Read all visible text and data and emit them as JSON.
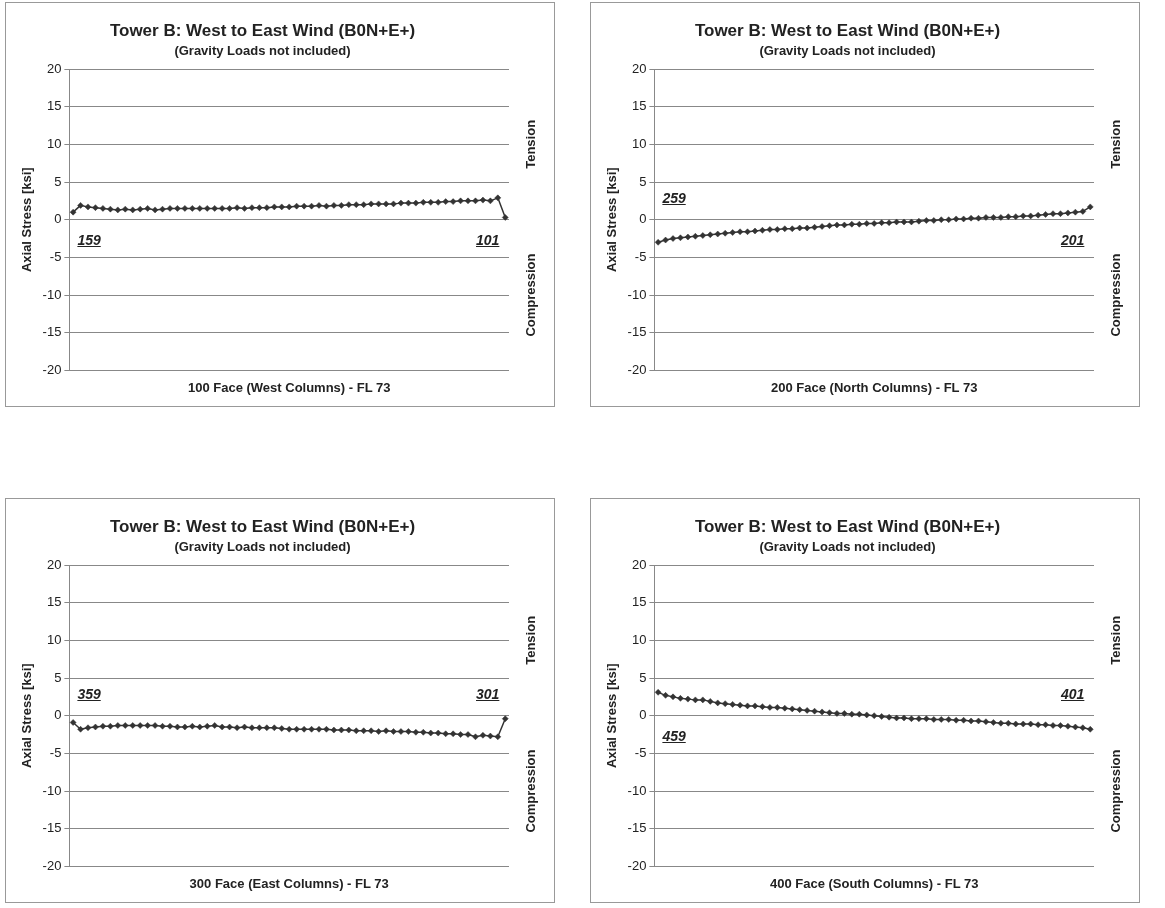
{
  "chart_data": [
    {
      "type": "line",
      "title": "Tower B: West to East Wind (B0N+E+)",
      "subtitle": "(Gravity Loads not included)",
      "xlabel": "100 Face (West Columns) - FL 73",
      "ylabel": "Axial Stress [ksi]",
      "categories": [
        null,
        null,
        null,
        null,
        null,
        null,
        null,
        null,
        null,
        null,
        null,
        null,
        null,
        null,
        null,
        null,
        null,
        null,
        null,
        null,
        null,
        null,
        null,
        null,
        null,
        null,
        null,
        null,
        null,
        null,
        null,
        null,
        null,
        null,
        null,
        null,
        null,
        null,
        null,
        null,
        null,
        null,
        null,
        null,
        null,
        null,
        null,
        null,
        null,
        null,
        null,
        null,
        null,
        null,
        null,
        null,
        null,
        null,
        null
      ],
      "series": [
        {
          "color": "#333333",
          "values": [
            1.0,
            1.9,
            1.7,
            1.6,
            1.5,
            1.4,
            1.3,
            1.4,
            1.3,
            1.4,
            1.5,
            1.3,
            1.4,
            1.5,
            1.5,
            1.5,
            1.5,
            1.5,
            1.5,
            1.5,
            1.5,
            1.5,
            1.6,
            1.5,
            1.6,
            1.6,
            1.6,
            1.7,
            1.7,
            1.7,
            1.8,
            1.8,
            1.8,
            1.9,
            1.8,
            1.9,
            1.9,
            2.0,
            2.0,
            2.0,
            2.1,
            2.1,
            2.1,
            2.1,
            2.2,
            2.2,
            2.2,
            2.3,
            2.3,
            2.3,
            2.4,
            2.4,
            2.5,
            2.5,
            2.5,
            2.6,
            2.5,
            2.9,
            0.3
          ]
        }
      ],
      "annotations": [
        "159",
        "101",
        "Tension",
        "Compression"
      ],
      "ylim": [
        -20,
        20
      ],
      "yticks": [
        -20,
        -15,
        -10,
        -5,
        0,
        5,
        10,
        15,
        20
      ],
      "grid": "y",
      "marker": "diamond",
      "tick_labels": "y",
      "legend": false
    },
    {
      "type": "line",
      "title": "Tower B: West to East Wind (B0N+E+)",
      "subtitle": "(Gravity Loads not included)",
      "xlabel": "200 Face (North Columns) - FL 73",
      "ylabel": "Axial Stress [ksi]",
      "categories": [
        null,
        null,
        null,
        null,
        null,
        null,
        null,
        null,
        null,
        null,
        null,
        null,
        null,
        null,
        null,
        null,
        null,
        null,
        null,
        null,
        null,
        null,
        null,
        null,
        null,
        null,
        null,
        null,
        null,
        null,
        null,
        null,
        null,
        null,
        null,
        null,
        null,
        null,
        null,
        null,
        null,
        null,
        null,
        null,
        null,
        null,
        null,
        null,
        null,
        null,
        null,
        null,
        null,
        null,
        null,
        null,
        null,
        null,
        null
      ],
      "series": [
        {
          "color": "#333333",
          "values": [
            -3.0,
            -2.7,
            -2.5,
            -2.4,
            -2.3,
            -2.2,
            -2.1,
            -2.0,
            -1.9,
            -1.8,
            -1.7,
            -1.6,
            -1.6,
            -1.5,
            -1.4,
            -1.3,
            -1.3,
            -1.2,
            -1.2,
            -1.1,
            -1.1,
            -1.0,
            -0.9,
            -0.8,
            -0.7,
            -0.7,
            -0.6,
            -0.6,
            -0.5,
            -0.5,
            -0.4,
            -0.4,
            -0.3,
            -0.3,
            -0.3,
            -0.2,
            -0.1,
            -0.1,
            0.0,
            0.0,
            0.1,
            0.1,
            0.2,
            0.2,
            0.3,
            0.3,
            0.3,
            0.4,
            0.4,
            0.5,
            0.5,
            0.6,
            0.7,
            0.8,
            0.8,
            0.9,
            1.0,
            1.1,
            1.7
          ]
        }
      ],
      "annotations": [
        "259",
        "201",
        "Tension",
        "Compression"
      ],
      "ylim": [
        -20,
        20
      ],
      "yticks": [
        -20,
        -15,
        -10,
        -5,
        0,
        5,
        10,
        15,
        20
      ],
      "grid": "y",
      "marker": "diamond",
      "tick_labels": "y",
      "legend": false
    },
    {
      "type": "line",
      "title": "Tower B: West to East Wind (B0N+E+)",
      "subtitle": "(Gravity Loads not included)",
      "xlabel": "300 Face (East Columns) - FL 73",
      "ylabel": "Axial Stress [ksi]",
      "categories": [
        null,
        null,
        null,
        null,
        null,
        null,
        null,
        null,
        null,
        null,
        null,
        null,
        null,
        null,
        null,
        null,
        null,
        null,
        null,
        null,
        null,
        null,
        null,
        null,
        null,
        null,
        null,
        null,
        null,
        null,
        null,
        null,
        null,
        null,
        null,
        null,
        null,
        null,
        null,
        null,
        null,
        null,
        null,
        null,
        null,
        null,
        null,
        null,
        null,
        null,
        null,
        null,
        null,
        null,
        null,
        null,
        null,
        null,
        null
      ],
      "series": [
        {
          "color": "#333333",
          "values": [
            -0.9,
            -1.8,
            -1.6,
            -1.5,
            -1.4,
            -1.4,
            -1.3,
            -1.3,
            -1.3,
            -1.3,
            -1.3,
            -1.3,
            -1.4,
            -1.4,
            -1.5,
            -1.5,
            -1.4,
            -1.5,
            -1.4,
            -1.3,
            -1.5,
            -1.5,
            -1.6,
            -1.5,
            -1.6,
            -1.6,
            -1.6,
            -1.6,
            -1.7,
            -1.8,
            -1.8,
            -1.8,
            -1.8,
            -1.8,
            -1.8,
            -1.9,
            -1.9,
            -1.9,
            -2.0,
            -2.0,
            -2.0,
            -2.1,
            -2.0,
            -2.1,
            -2.1,
            -2.1,
            -2.2,
            -2.2,
            -2.3,
            -2.3,
            -2.4,
            -2.4,
            -2.5,
            -2.5,
            -2.8,
            -2.6,
            -2.7,
            -2.8,
            -0.4
          ]
        }
      ],
      "annotations": [
        "359",
        "301",
        "Tension",
        "Compression"
      ],
      "ylim": [
        -20,
        20
      ],
      "yticks": [
        -20,
        -15,
        -10,
        -5,
        0,
        5,
        10,
        15,
        20
      ],
      "grid": "y",
      "marker": "diamond",
      "tick_labels": "y",
      "legend": false
    },
    {
      "type": "line",
      "title": "Tower B: West to East Wind (B0N+E+)",
      "subtitle": "(Gravity Loads not included)",
      "xlabel": "400 Face (South Columns) - FL 73",
      "ylabel": "Axial Stress [ksi]",
      "categories": [
        null,
        null,
        null,
        null,
        null,
        null,
        null,
        null,
        null,
        null,
        null,
        null,
        null,
        null,
        null,
        null,
        null,
        null,
        null,
        null,
        null,
        null,
        null,
        null,
        null,
        null,
        null,
        null,
        null,
        null,
        null,
        null,
        null,
        null,
        null,
        null,
        null,
        null,
        null,
        null,
        null,
        null,
        null,
        null,
        null,
        null,
        null,
        null,
        null,
        null,
        null,
        null,
        null,
        null,
        null,
        null,
        null,
        null,
        null
      ],
      "series": [
        {
          "color": "#333333",
          "values": [
            3.1,
            2.7,
            2.5,
            2.3,
            2.2,
            2.1,
            2.1,
            1.9,
            1.7,
            1.6,
            1.5,
            1.4,
            1.3,
            1.3,
            1.2,
            1.1,
            1.1,
            1.0,
            0.9,
            0.8,
            0.7,
            0.6,
            0.5,
            0.4,
            0.3,
            0.3,
            0.2,
            0.2,
            0.1,
            0.0,
            -0.1,
            -0.2,
            -0.3,
            -0.3,
            -0.4,
            -0.4,
            -0.4,
            -0.5,
            -0.5,
            -0.5,
            -0.6,
            -0.6,
            -0.7,
            -0.7,
            -0.8,
            -0.9,
            -1.0,
            -1.0,
            -1.1,
            -1.1,
            -1.1,
            -1.2,
            -1.2,
            -1.3,
            -1.3,
            -1.4,
            -1.5,
            -1.6,
            -1.8
          ]
        }
      ],
      "annotations": [
        "459",
        "401",
        "Tension",
        "Compression"
      ],
      "ylim": [
        -20,
        20
      ],
      "yticks": [
        -20,
        -15,
        -10,
        -5,
        0,
        5,
        10,
        15,
        20
      ],
      "grid": "y",
      "marker": "diamond",
      "tick_labels": "y",
      "legend": false
    }
  ]
}
